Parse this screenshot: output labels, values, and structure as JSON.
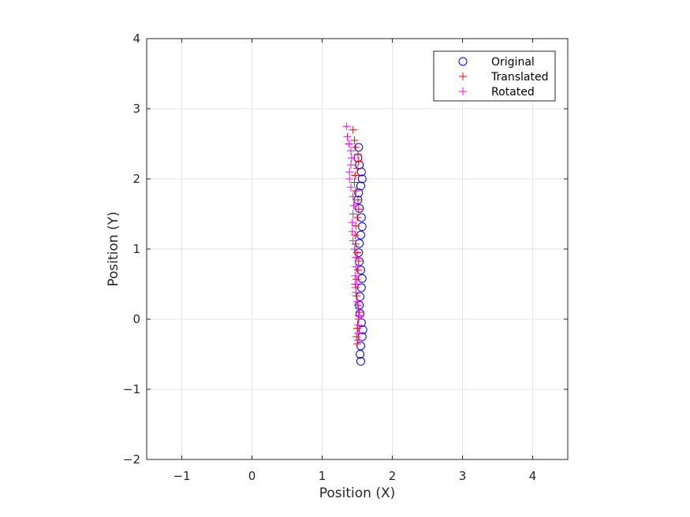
{
  "chart_data": {
    "type": "scatter",
    "title": "",
    "xlabel": "Position (X)",
    "ylabel": "Position (Y)",
    "xlim": [
      -1.5,
      4.5
    ],
    "ylim": [
      -2,
      4
    ],
    "x_ticks": [
      -1,
      0,
      1,
      2,
      3,
      4
    ],
    "y_ticks": [
      -2,
      -1,
      0,
      1,
      2,
      3,
      4
    ],
    "x_tick_labels": [
      "−1",
      "0",
      "1",
      "2",
      "3",
      "4"
    ],
    "y_tick_labels": [
      "−2",
      "−1",
      "0",
      "1",
      "2",
      "3",
      "4"
    ],
    "grid": true,
    "legend_position": "top-right",
    "series": [
      {
        "name": "Original",
        "marker": "circle",
        "color": "#0000ff",
        "x": [
          1.55,
          1.54,
          1.55,
          1.57,
          1.58,
          1.56,
          1.54,
          1.53,
          1.54,
          1.56,
          1.57,
          1.55,
          1.53,
          1.52,
          1.53,
          1.55,
          1.57,
          1.56,
          1.53,
          1.51,
          1.52,
          1.55,
          1.57,
          1.56,
          1.53,
          1.51,
          1.52
        ],
        "y": [
          -0.6,
          -0.5,
          -0.38,
          -0.25,
          -0.15,
          -0.05,
          0.08,
          0.2,
          0.32,
          0.45,
          0.58,
          0.7,
          0.82,
          0.95,
          1.08,
          1.2,
          1.32,
          1.45,
          1.58,
          1.7,
          1.8,
          1.9,
          2.0,
          2.1,
          2.2,
          2.3,
          2.45
        ]
      },
      {
        "name": "Translated",
        "marker": "plus",
        "color": "#ff0000",
        "x": [
          1.5,
          1.49,
          1.5,
          1.52,
          1.53,
          1.51,
          1.49,
          1.48,
          1.49,
          1.51,
          1.52,
          1.5,
          1.48,
          1.47,
          1.48,
          1.5,
          1.52,
          1.51,
          1.48,
          1.46,
          1.47,
          1.5,
          1.52,
          1.51,
          1.48,
          1.46,
          1.44
        ],
        "y": [
          -0.35,
          -0.25,
          -0.13,
          0.0,
          0.1,
          0.2,
          0.33,
          0.45,
          0.57,
          0.7,
          0.83,
          0.95,
          1.07,
          1.2,
          1.33,
          1.45,
          1.57,
          1.7,
          1.83,
          1.95,
          2.05,
          2.15,
          2.25,
          2.35,
          2.45,
          2.55,
          2.7
        ]
      },
      {
        "name": "Rotated",
        "marker": "plus",
        "color": "#ff00ff",
        "x": [
          1.51,
          1.51,
          1.51,
          1.52,
          1.52,
          1.5,
          1.48,
          1.47,
          1.47,
          1.48,
          1.48,
          1.46,
          1.44,
          1.43,
          1.43,
          1.44,
          1.45,
          1.44,
          1.41,
          1.39,
          1.39,
          1.41,
          1.42,
          1.41,
          1.38,
          1.36,
          1.35
        ],
        "y": [
          -0.3,
          -0.2,
          -0.08,
          0.05,
          0.15,
          0.25,
          0.38,
          0.5,
          0.62,
          0.75,
          0.88,
          1.0,
          1.12,
          1.25,
          1.38,
          1.5,
          1.62,
          1.75,
          1.88,
          2.0,
          2.1,
          2.2,
          2.3,
          2.4,
          2.5,
          2.6,
          2.75
        ]
      }
    ]
  }
}
